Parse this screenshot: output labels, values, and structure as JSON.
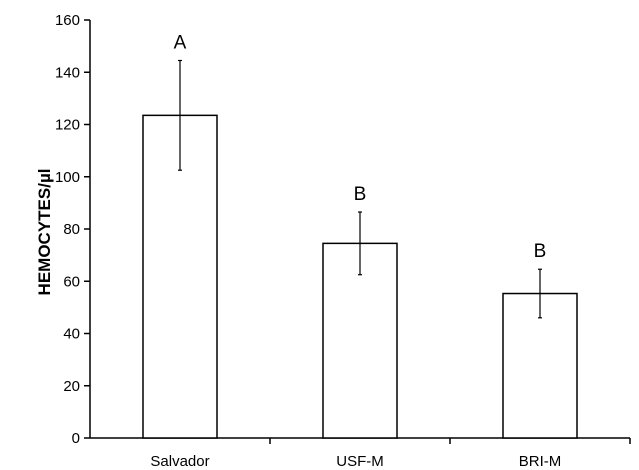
{
  "chart_data": {
    "type": "bar",
    "title": "",
    "xlabel": "",
    "ylabel": "HEMOCYTES/µl",
    "categories": [
      "Salvador",
      "USF-M",
      "BRI-M"
    ],
    "values": [
      123.5,
      74.5,
      55.3
    ],
    "error": [
      21,
      12,
      9.3
    ],
    "significance": [
      "A",
      "B",
      "B"
    ],
    "ylim": [
      0,
      160
    ],
    "yticks": [
      0,
      20,
      40,
      60,
      80,
      100,
      120,
      140,
      160
    ],
    "grid": false,
    "legend": "none",
    "bar_fill": "#ffffff",
    "bar_stroke": "#000000"
  }
}
